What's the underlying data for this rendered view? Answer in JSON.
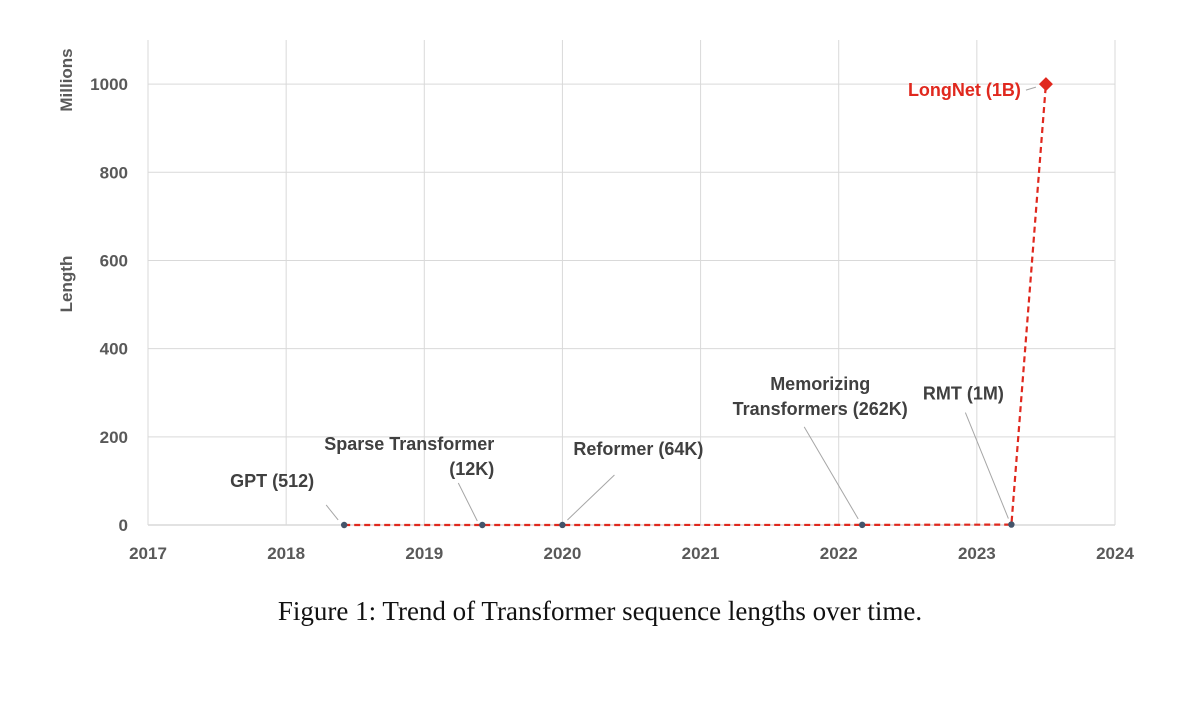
{
  "caption": "Figure 1: Trend of Transformer sequence lengths over time.",
  "chart_data": {
    "type": "line",
    "title": "",
    "xlabel": "",
    "ylabel": "Length",
    "y_unit_label": "Millions",
    "xlim": [
      2017,
      2024
    ],
    "ylim": [
      0,
      1100
    ],
    "x_ticks": [
      2017,
      2018,
      2019,
      2020,
      2021,
      2022,
      2023,
      2024
    ],
    "y_ticks": [
      0,
      200,
      400,
      600,
      800,
      1000
    ],
    "grid": true,
    "legend": "none",
    "series": [
      {
        "color": "#e0281e",
        "line_style": "dashed",
        "points": [
          {
            "x": 2018.42,
            "y": 0.000512,
            "label": "GPT (512)"
          },
          {
            "x": 2019.42,
            "y": 0.012,
            "label": "Sparse Transformer (12K)"
          },
          {
            "x": 2020.0,
            "y": 0.064,
            "label": "Reformer (64K)"
          },
          {
            "x": 2022.17,
            "y": 0.262,
            "label": "Memorizing Transformers (262K)"
          },
          {
            "x": 2023.25,
            "y": 1,
            "label": "RMT (1M)"
          },
          {
            "x": 2023.5,
            "y": 1000,
            "label": "LongNet (1B)"
          }
        ]
      }
    ],
    "annotation_lines": [
      [
        "GPT (512)"
      ],
      [
        "Sparse Transformer",
        "(12K)"
      ],
      [
        "Reformer (64K)"
      ],
      [
        "Memorizing",
        "Transformers (262K)"
      ],
      [
        "RMT (1M)"
      ],
      [
        "LongNet (1B)"
      ]
    ],
    "colors": {
      "grid": "#d9d9d9",
      "axis_text": "#595959",
      "point": "#44546a",
      "highlight": "#e0281e",
      "label": "#404040"
    }
  }
}
